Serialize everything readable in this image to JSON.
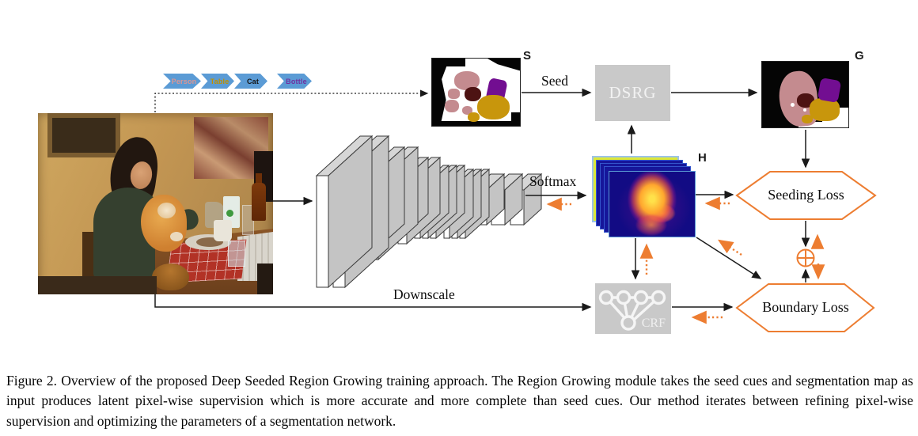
{
  "figure": {
    "classes": [
      {
        "label": "Person",
        "color": "#d99694"
      },
      {
        "label": "Table",
        "color": "#bf9000"
      },
      {
        "label": "Cat",
        "color": "#141414"
      },
      {
        "label": "Bottle",
        "color": "#7030a0"
      }
    ],
    "chevron_color": "#5b9bd5",
    "maps": {
      "seed_tag": "S",
      "result_tag": "G",
      "heatmap_tag": "H"
    },
    "modules": {
      "dsrg": "DSRG",
      "crf": "CRF"
    },
    "losses": {
      "seeding": "Seeding Loss",
      "boundary": "Boundary Loss"
    },
    "edge_labels": {
      "seed": "Seed",
      "softmax": "Softmax",
      "downscale": "Downscale"
    },
    "colors": {
      "accent_orange": "#ed7d31",
      "module_gray": "#c9c9c9",
      "seg_person_pink": "#c48b8f",
      "seg_table_gold": "#c8960c",
      "seg_bottle_purple": "#720e91",
      "seg_maroon": "#4d1313",
      "heatmap_back_yellow": "#dde838",
      "heatmap_navy": "#16169a"
    }
  },
  "caption": "Figure 2. Overview of the proposed Deep Seeded Region Growing training approach. The Region Growing module takes the seed cues and segmentation map as input produces latent pixel-wise supervision which is more accurate and more complete than seed cues. Our method iterates between refining pixel-wise supervision and optimizing the parameters of a segmentation network."
}
